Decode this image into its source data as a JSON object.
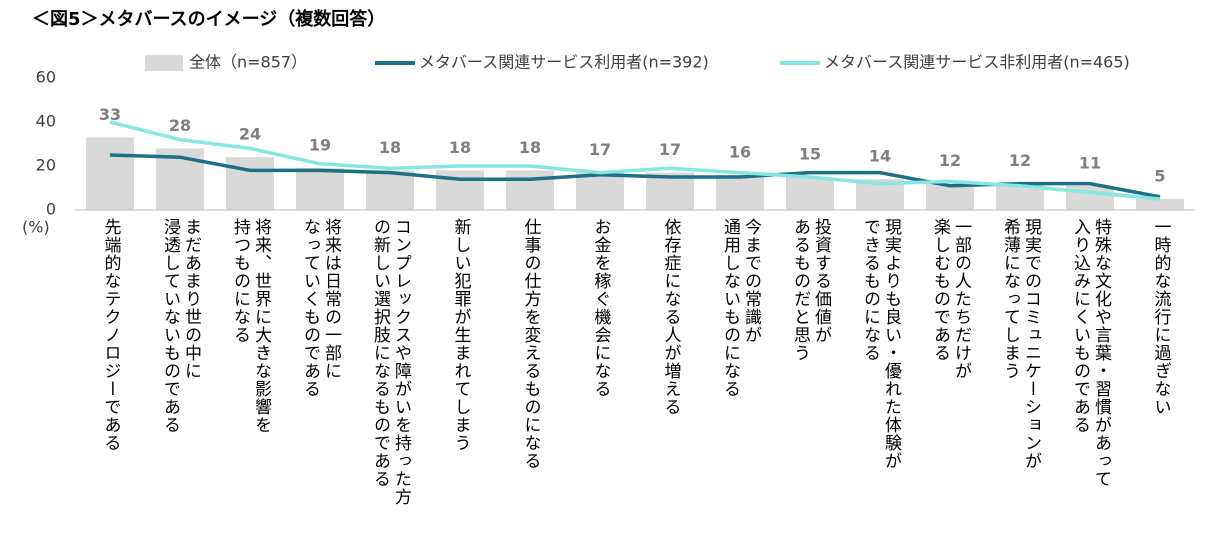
{
  "chart_data": {
    "type": "bar_line",
    "title": "＜図5＞メタバースのイメージ（複数回答）",
    "y_unit": "(%)",
    "categories": [
      "先端的なテクノロジーである",
      "まだあまり世の中に\n浸透していないものである",
      "将来、世界に大きな影響を\n持つものになる",
      "将来は日常の一部に\nなっていくものである",
      "コンプレックスや障がいを持った方\nの新しい選択肢になるものである",
      "新しい犯罪が生まれてしまう",
      "仕事の仕方を変えるものになる",
      "お金を稼ぐ機会になる",
      "依存症になる人が増える",
      "今までの常識が\n通用しないものになる",
      "投資する価値が\nあるものだと思う",
      "現実よりも良い・優れた体験が\nできるものになる",
      "一部の人たちだけが\n楽しむものである",
      "現実でのコミュニケーションが\n希薄になってしまう",
      "特殊な文化や言葉・習慣があって\n入り込みにくいものである",
      "一時的な流行に過ぎない"
    ],
    "series": [
      {
        "name": "全体（n=857）",
        "kind": "bar",
        "color": "#d9d9d9",
        "values": [
          33,
          28,
          24,
          19,
          18,
          18,
          18,
          17,
          17,
          16,
          15,
          14,
          12,
          12,
          11,
          5
        ]
      },
      {
        "name": "メタバース関連サービス利用者(n=392)",
        "kind": "line",
        "color": "#1f6f87",
        "values": [
          25,
          24,
          18,
          18,
          17,
          14,
          14,
          16,
          15,
          15,
          17,
          17,
          11,
          12,
          12,
          6
        ]
      },
      {
        "name": "メタバース関連サービス非利用者(n=465)",
        "kind": "line",
        "color": "#86e6e0",
        "values": [
          40,
          32,
          28,
          21,
          19,
          20,
          20,
          17,
          19,
          17,
          15,
          12,
          13,
          11,
          8,
          5
        ]
      }
    ],
    "ylim": [
      0,
      60
    ],
    "yticks": [
      0,
      20,
      40,
      60
    ],
    "grid": false,
    "legend": "top"
  }
}
